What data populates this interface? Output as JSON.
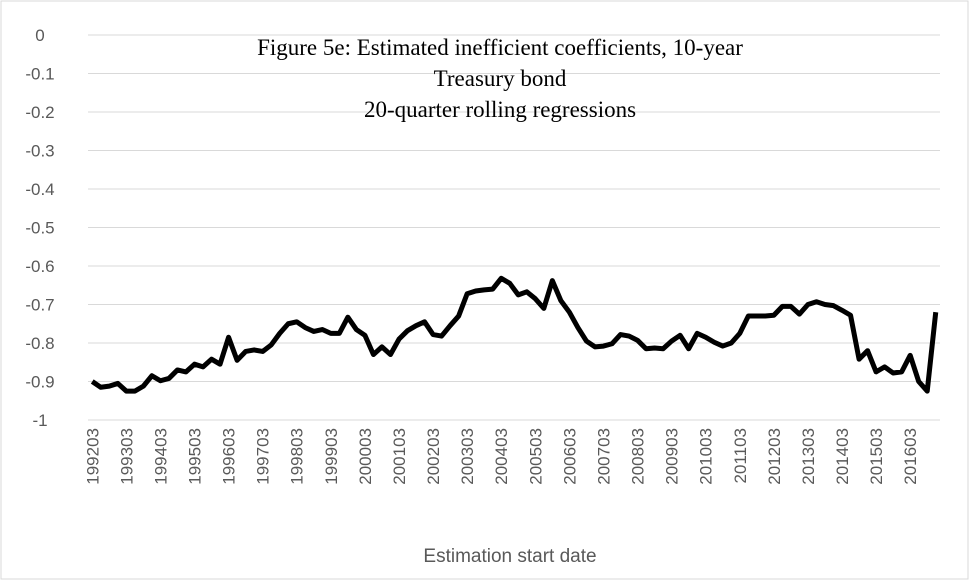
{
  "chart_data": {
    "type": "line",
    "title": [
      "Figure 5e: Estimated inefficient coefficients, 10-year",
      "Treasury bond",
      "20-quarter rolling regressions"
    ],
    "x_label": "Estimation start date",
    "categories": [
      "199203",
      null,
      null,
      null,
      "199303",
      null,
      null,
      null,
      "199403",
      null,
      null,
      null,
      "199503",
      null,
      null,
      null,
      "199603",
      null,
      null,
      null,
      "199703",
      null,
      null,
      null,
      "199803",
      null,
      null,
      null,
      "199903",
      null,
      null,
      null,
      "200003",
      null,
      null,
      null,
      "200103",
      null,
      null,
      null,
      "200203",
      null,
      null,
      null,
      "200303",
      null,
      null,
      null,
      "200403",
      null,
      null,
      null,
      "200503",
      null,
      null,
      null,
      "200603",
      null,
      null,
      null,
      "200703",
      null,
      null,
      null,
      "200803",
      null,
      null,
      null,
      "200903",
      null,
      null,
      null,
      "201003",
      null,
      null,
      null,
      "201103",
      null,
      null,
      null,
      "201203",
      null,
      null,
      null,
      "201303",
      null,
      null,
      null,
      "201403",
      null,
      null,
      null,
      "201503",
      null,
      null,
      null,
      "201603",
      null,
      null,
      null
    ],
    "values": [
      -0.9,
      -0.915,
      -0.912,
      -0.905,
      -0.925,
      -0.925,
      -0.912,
      -0.885,
      -0.898,
      -0.892,
      -0.87,
      -0.875,
      -0.855,
      -0.862,
      -0.842,
      -0.855,
      -0.785,
      -0.845,
      -0.822,
      -0.818,
      -0.822,
      -0.805,
      -0.775,
      -0.75,
      -0.745,
      -0.76,
      -0.77,
      -0.765,
      -0.775,
      -0.775,
      -0.733,
      -0.765,
      -0.78,
      -0.83,
      -0.81,
      -0.83,
      -0.79,
      -0.768,
      -0.755,
      -0.745,
      -0.778,
      -0.782,
      -0.755,
      -0.73,
      -0.672,
      -0.665,
      -0.662,
      -0.66,
      -0.632,
      -0.645,
      -0.675,
      -0.667,
      -0.685,
      -0.71,
      -0.638,
      -0.69,
      -0.72,
      -0.76,
      -0.795,
      -0.81,
      -0.808,
      -0.802,
      -0.778,
      -0.782,
      -0.793,
      -0.815,
      -0.813,
      -0.815,
      -0.795,
      -0.78,
      -0.815,
      -0.775,
      -0.785,
      -0.798,
      -0.808,
      -0.8,
      -0.775,
      -0.73,
      -0.73,
      -0.73,
      -0.728,
      -0.705,
      -0.705,
      -0.725,
      -0.7,
      -0.693,
      -0.7,
      -0.703,
      -0.715,
      -0.728,
      -0.842,
      -0.82,
      -0.875,
      -0.862,
      -0.878,
      -0.875,
      -0.832,
      -0.9,
      -0.925,
      -0.72
    ],
    "color": "#000000",
    "ylim": [
      -1,
      0
    ],
    "yticks": [
      0,
      -0.1,
      -0.2,
      -0.3,
      -0.4,
      -0.5,
      -0.6,
      -0.7,
      -0.8,
      -0.9,
      -1
    ],
    "grid": true
  }
}
